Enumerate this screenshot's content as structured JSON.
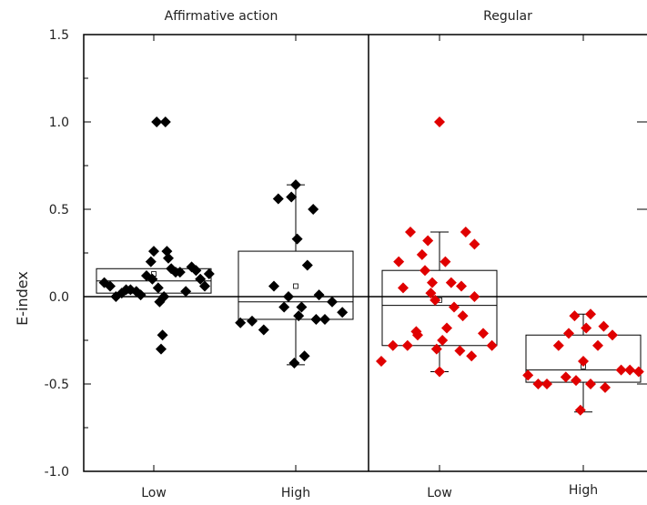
{
  "chart_data": {
    "type": "scatter",
    "ylabel": "E-index",
    "ylim": [
      -1.0,
      1.5
    ],
    "yticks": [
      "-1.0",
      "-0.5",
      "0.0",
      "0.5",
      "1.0",
      "1.5"
    ],
    "grid": false,
    "panels": [
      {
        "title": "Affirmative action",
        "marker_color": "#000000",
        "groups": [
          {
            "label": "Low",
            "box": {
              "q1": 0.02,
              "median": 0.09,
              "q3": 0.16
            },
            "mean": 0.13,
            "points": [
              [
                -0.34,
                0.08
              ],
              [
                -0.3,
                0.06
              ],
              [
                -0.26,
                0.0
              ],
              [
                -0.22,
                0.02
              ],
              [
                -0.19,
                0.04
              ],
              [
                -0.16,
                0.04
              ],
              [
                -0.12,
                0.03
              ],
              [
                -0.09,
                0.01
              ],
              [
                -0.05,
                0.12
              ],
              [
                -0.02,
                0.2
              ],
              [
                -0.01,
                0.1
              ],
              [
                0.0,
                0.26
              ],
              [
                0.02,
                1.0
              ],
              [
                0.03,
                0.05
              ],
              [
                0.04,
                -0.03
              ],
              [
                0.05,
                -0.3
              ],
              [
                0.06,
                -0.22
              ],
              [
                0.07,
                0.0
              ],
              [
                0.08,
                1.0
              ],
              [
                0.09,
                0.26
              ],
              [
                0.1,
                0.22
              ],
              [
                0.12,
                0.16
              ],
              [
                0.15,
                0.14
              ],
              [
                0.18,
                0.14
              ],
              [
                0.22,
                0.03
              ],
              [
                0.26,
                0.17
              ],
              [
                0.29,
                0.15
              ],
              [
                0.32,
                0.1
              ],
              [
                0.35,
                0.06
              ],
              [
                0.38,
                0.13
              ]
            ]
          },
          {
            "label": "High",
            "box": {
              "q1": -0.13,
              "median": -0.03,
              "q3": 0.26
            },
            "mean": 0.06,
            "whisker_low": -0.39,
            "whisker_high": 0.64,
            "points": [
              [
                -0.38,
                -0.15
              ],
              [
                -0.3,
                -0.14
              ],
              [
                -0.22,
                -0.19
              ],
              [
                -0.15,
                0.06
              ],
              [
                -0.12,
                0.56
              ],
              [
                -0.08,
                -0.06
              ],
              [
                -0.05,
                0.0
              ],
              [
                -0.03,
                0.57
              ],
              [
                -0.01,
                -0.38
              ],
              [
                0.0,
                0.64
              ],
              [
                0.01,
                0.33
              ],
              [
                0.02,
                -0.11
              ],
              [
                0.04,
                -0.06
              ],
              [
                0.06,
                -0.34
              ],
              [
                0.08,
                0.18
              ],
              [
                0.12,
                0.5
              ],
              [
                0.14,
                -0.13
              ],
              [
                0.16,
                0.01
              ],
              [
                0.2,
                -0.13
              ],
              [
                0.25,
                -0.03
              ],
              [
                0.32,
                -0.09
              ]
            ]
          }
        ]
      },
      {
        "title": "Regular",
        "marker_color": "#e00000",
        "groups": [
          {
            "label": "Low",
            "box": {
              "q1": -0.28,
              "median": -0.05,
              "q3": 0.15
            },
            "mean": -0.02,
            "whisker_low": -0.43,
            "whisker_high": 0.37,
            "points": [
              [
                -0.4,
                -0.37
              ],
              [
                -0.32,
                -0.28
              ],
              [
                -0.28,
                0.2
              ],
              [
                -0.25,
                0.05
              ],
              [
                -0.22,
                -0.28
              ],
              [
                -0.2,
                0.37
              ],
              [
                -0.16,
                -0.2
              ],
              [
                -0.15,
                -0.22
              ],
              [
                -0.12,
                0.24
              ],
              [
                -0.1,
                0.15
              ],
              [
                -0.08,
                0.32
              ],
              [
                -0.06,
                0.02
              ],
              [
                -0.05,
                0.08
              ],
              [
                -0.03,
                -0.02
              ],
              [
                -0.02,
                -0.3
              ],
              [
                0.0,
                1.0
              ],
              [
                0.0,
                -0.43
              ],
              [
                0.02,
                -0.25
              ],
              [
                0.04,
                0.2
              ],
              [
                0.05,
                -0.18
              ],
              [
                0.08,
                0.08
              ],
              [
                0.1,
                -0.06
              ],
              [
                0.14,
                -0.31
              ],
              [
                0.15,
                0.06
              ],
              [
                0.16,
                -0.11
              ],
              [
                0.18,
                0.37
              ],
              [
                0.22,
                -0.34
              ],
              [
                0.24,
                0.0
              ],
              [
                0.24,
                0.3
              ],
              [
                0.3,
                -0.21
              ],
              [
                0.36,
                -0.28
              ]
            ]
          },
          {
            "label": "High",
            "box": {
              "q1": -0.49,
              "median": -0.42,
              "q3": -0.22
            },
            "mean": -0.4,
            "whisker_low": -0.66,
            "whisker_high": -0.1,
            "points": [
              [
                -0.38,
                -0.45
              ],
              [
                -0.31,
                -0.5
              ],
              [
                -0.25,
                -0.5
              ],
              [
                -0.17,
                -0.28
              ],
              [
                -0.12,
                -0.46
              ],
              [
                -0.1,
                -0.21
              ],
              [
                -0.06,
                -0.11
              ],
              [
                -0.05,
                -0.48
              ],
              [
                -0.02,
                -0.65
              ],
              [
                0.0,
                -0.37
              ],
              [
                0.02,
                -0.18
              ],
              [
                0.05,
                -0.5
              ],
              [
                0.05,
                -0.1
              ],
              [
                0.1,
                -0.28
              ],
              [
                0.14,
                -0.17
              ],
              [
                0.15,
                -0.52
              ],
              [
                0.2,
                -0.22
              ],
              [
                0.26,
                -0.42
              ],
              [
                0.32,
                -0.42
              ],
              [
                0.38,
                -0.43
              ]
            ]
          }
        ]
      }
    ]
  }
}
